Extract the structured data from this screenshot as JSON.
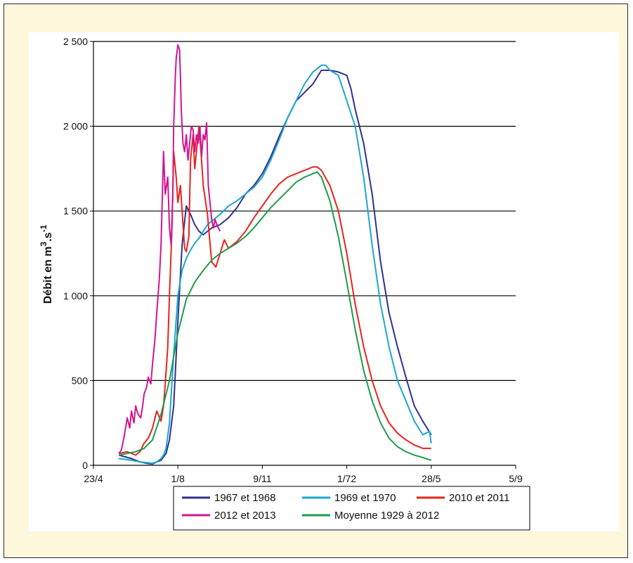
{
  "chart_data": {
    "type": "line",
    "ylabel": {
      "base": "Débit en m",
      "sup1": "3",
      "mid": ".s",
      "sup2": "-1"
    },
    "ylim": [
      0,
      2500
    ],
    "yticks": [
      0,
      500,
      1000,
      1500,
      2000,
      2500
    ],
    "ytick_labels": [
      "0",
      "500",
      "1 000",
      "1 500",
      "2 000",
      "2 500"
    ],
    "xticks": [
      0,
      100,
      200,
      300,
      400,
      500
    ],
    "xtick_labels": [
      "23/4",
      "1/8",
      "9/11",
      "1/72",
      "28/5",
      "5/9"
    ],
    "grid": "horizontal",
    "legend_position": "bottom",
    "series": [
      {
        "name": "1967 et 1968",
        "color": "#2e3192",
        "x": [
          30,
          45,
          55,
          65,
          70,
          75,
          80,
          83,
          86,
          90,
          95,
          100,
          105,
          110,
          115,
          120,
          125,
          130,
          135,
          140,
          150,
          160,
          170,
          180,
          190,
          200,
          210,
          220,
          230,
          240,
          250,
          260,
          270,
          280,
          290,
          300,
          305,
          310,
          320,
          330,
          340,
          350,
          360,
          370,
          380,
          390,
          400
        ],
        "y": [
          60,
          40,
          20,
          10,
          8,
          20,
          30,
          50,
          70,
          150,
          350,
          850,
          1300,
          1530,
          1480,
          1420,
          1380,
          1360,
          1380,
          1400,
          1420,
          1460,
          1520,
          1600,
          1650,
          1720,
          1820,
          1940,
          2050,
          2150,
          2200,
          2250,
          2330,
          2330,
          2320,
          2300,
          2220,
          2100,
          1900,
          1600,
          1200,
          900,
          700,
          520,
          350,
          260,
          180
        ]
      },
      {
        "name": "1969 et 1970",
        "color": "#1ba7cf",
        "x": [
          30,
          45,
          55,
          65,
          70,
          75,
          80,
          83,
          86,
          90,
          95,
          100,
          105,
          110,
          115,
          120,
          125,
          130,
          135,
          140,
          150,
          160,
          170,
          180,
          190,
          200,
          210,
          220,
          230,
          240,
          250,
          260,
          270,
          275,
          280,
          290,
          300,
          310,
          320,
          330,
          340,
          350,
          360,
          370,
          380,
          390,
          398,
          400
        ],
        "y": [
          40,
          30,
          20,
          15,
          12,
          20,
          40,
          60,
          100,
          250,
          650,
          1000,
          1150,
          1220,
          1270,
          1310,
          1340,
          1380,
          1420,
          1440,
          1480,
          1530,
          1560,
          1600,
          1640,
          1700,
          1800,
          1920,
          2050,
          2150,
          2250,
          2320,
          2360,
          2360,
          2330,
          2300,
          2150,
          2000,
          1700,
          1300,
          950,
          700,
          500,
          380,
          260,
          180,
          200,
          130
        ]
      },
      {
        "name": "2010 et 2011",
        "color": "#e8231d",
        "x": [
          30,
          40,
          50,
          55,
          60,
          65,
          70,
          75,
          80,
          83,
          85,
          88,
          90,
          93,
          95,
          98,
          100,
          103,
          105,
          108,
          110,
          113,
          115,
          118,
          120,
          123,
          125,
          128,
          130,
          135,
          140,
          145,
          150,
          155,
          160,
          165,
          170,
          175,
          180,
          190,
          200,
          210,
          220,
          230,
          240,
          250,
          255,
          260,
          265,
          270,
          280,
          290,
          300,
          310,
          320,
          330,
          340,
          350,
          360,
          370,
          380,
          390,
          400
        ],
        "y": [
          70,
          80,
          60,
          80,
          130,
          160,
          220,
          320,
          260,
          350,
          480,
          700,
          1000,
          1400,
          1850,
          1700,
          1550,
          1650,
          1500,
          1280,
          1260,
          1350,
          1800,
          1950,
          1750,
          1900,
          2000,
          1800,
          1650,
          1480,
          1200,
          1170,
          1250,
          1330,
          1280,
          1300,
          1320,
          1350,
          1380,
          1460,
          1530,
          1600,
          1660,
          1700,
          1720,
          1740,
          1750,
          1760,
          1760,
          1740,
          1650,
          1500,
          1250,
          950,
          700,
          500,
          350,
          250,
          190,
          150,
          120,
          100,
          100
        ]
      },
      {
        "name": "2012 et 2013",
        "color": "#d11592",
        "x": [
          30,
          33,
          36,
          40,
          43,
          45,
          48,
          50,
          53,
          56,
          58,
          60,
          63,
          65,
          68,
          70,
          73,
          75,
          78,
          80,
          83,
          85,
          88,
          90,
          92,
          94,
          95,
          97,
          98,
          100,
          102,
          103,
          104,
          105,
          106,
          108,
          110,
          112,
          114,
          116,
          118,
          120,
          122,
          124,
          126,
          128,
          130,
          132,
          134,
          136,
          138,
          140,
          142,
          144,
          146,
          148,
          150
        ],
        "y": [
          70,
          90,
          160,
          280,
          220,
          320,
          250,
          350,
          300,
          280,
          340,
          420,
          460,
          520,
          480,
          600,
          750,
          900,
          1100,
          1300,
          1850,
          1600,
          1700,
          1400,
          1300,
          1600,
          2000,
          2300,
          2400,
          2480,
          2450,
          2300,
          2100,
          2000,
          1900,
          1850,
          1950,
          1800,
          1900,
          2000,
          1980,
          1850,
          1950,
          1900,
          2000,
          1820,
          1950,
          1920,
          2020,
          1650,
          1550,
          1450,
          1400,
          1450,
          1420,
          1400,
          1380
        ]
      },
      {
        "name": "Moyenne 1929 à 2012",
        "color": "#1e9b4a",
        "x": [
          30,
          40,
          50,
          60,
          70,
          80,
          90,
          100,
          110,
          120,
          130,
          140,
          150,
          160,
          170,
          180,
          190,
          200,
          210,
          220,
          230,
          240,
          250,
          260,
          265,
          270,
          280,
          290,
          300,
          310,
          320,
          330,
          340,
          350,
          360,
          370,
          380,
          390,
          400
        ],
        "y": [
          60,
          70,
          80,
          100,
          150,
          300,
          500,
          780,
          980,
          1080,
          1150,
          1210,
          1250,
          1280,
          1310,
          1350,
          1400,
          1460,
          1520,
          1570,
          1620,
          1670,
          1700,
          1720,
          1730,
          1700,
          1560,
          1350,
          1080,
          800,
          560,
          380,
          250,
          160,
          110,
          80,
          60,
          45,
          30
        ]
      }
    ]
  }
}
